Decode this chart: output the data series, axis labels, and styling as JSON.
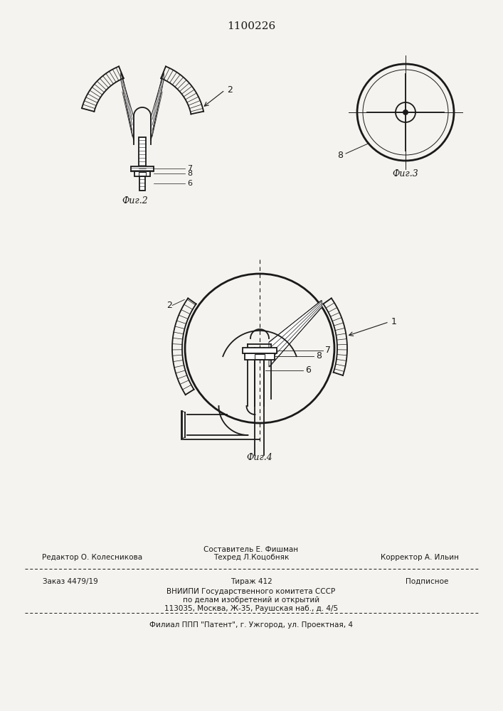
{
  "title_number": "1100226",
  "background_color": "#f5f3ef",
  "line_color": "#1a1a1a",
  "fig2_label": "Фиг.2",
  "fig3_label": "Фиг.3",
  "fig4_label": "Фиг.4",
  "footer_line1_left": "Редактор О. Колесникова",
  "footer_line1_center": "Составитель Е. Фишман",
  "footer_line2_center": "Техред Л.Коцобняк",
  "footer_line2_right": "Корректор А. Ильин",
  "footer_line3_left": "Заказ 4479/19",
  "footer_line3_center": "Тираж 412",
  "footer_line3_right": "Подписное",
  "footer_line4": "ВНИИПИ Государственного комитета СССР",
  "footer_line5": "по делам изобретений и открытий",
  "footer_line6": "113035, Москва, Ж-35, Раушская наб., д. 4/5",
  "footer_line7": "Филиал ППП \"Патент\", г. Ужгород, ул. Проектная, 4"
}
